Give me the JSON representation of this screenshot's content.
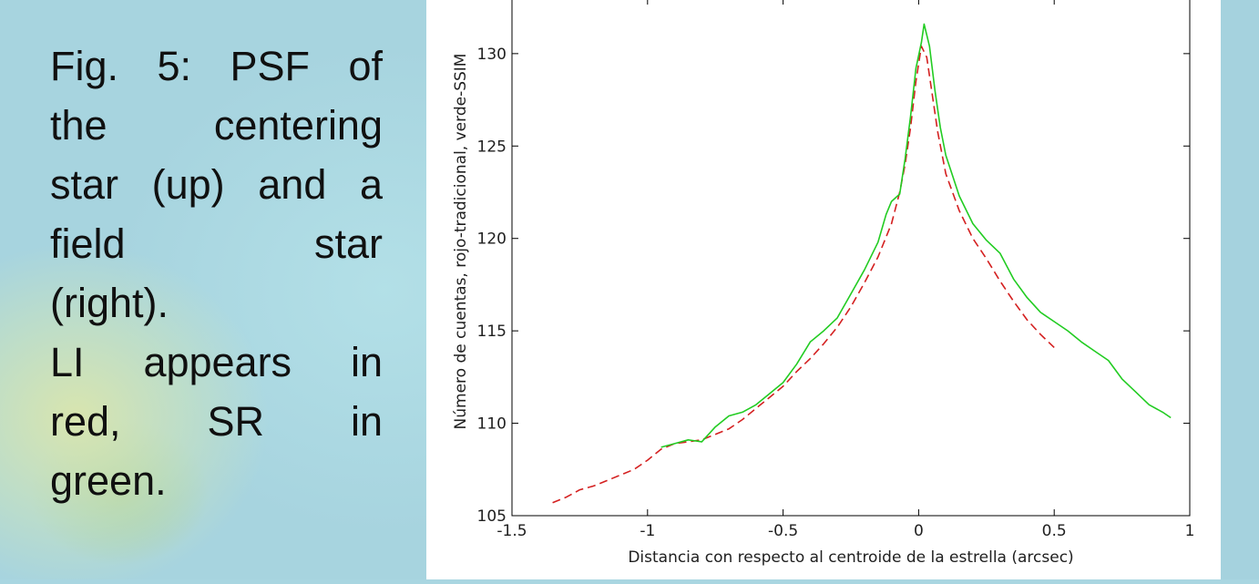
{
  "caption": {
    "lines": [
      "Fig. 5: PSF of",
      "the centering",
      "star (up) and a",
      "field star",
      "(right).",
      "LI appears in",
      "red, SR in",
      "green."
    ]
  },
  "colors": {
    "background": "#a9d6e1",
    "series_red": "#d42020",
    "series_green": "#22cc22"
  },
  "chart_data": {
    "type": "line",
    "title": "",
    "xlabel": "Distancia con respecto al centroide de la estrella (arcsec)",
    "ylabel": "Número de cuentas, rojo-tradicional, verde-SSIM",
    "xlim": [
      -1.5,
      1
    ],
    "ylim": [
      105,
      133
    ],
    "xticks": [
      "-1.5",
      "-1",
      "-0.5",
      "0",
      "0.5",
      "1"
    ],
    "yticks": [
      "105",
      "110",
      "115",
      "120",
      "125",
      "130"
    ],
    "grid": false,
    "series": [
      {
        "color": "#d42020",
        "style": "dashed",
        "points": [
          [
            -1.35,
            105.7
          ],
          [
            -1.3,
            106.0
          ],
          [
            -1.25,
            106.4
          ],
          [
            -1.2,
            106.6
          ],
          [
            -1.15,
            106.9
          ],
          [
            -1.1,
            107.2
          ],
          [
            -1.05,
            107.5
          ],
          [
            -1.0,
            108.0
          ],
          [
            -0.95,
            108.6
          ],
          [
            -0.9,
            108.9
          ],
          [
            -0.85,
            109.0
          ],
          [
            -0.8,
            109.1
          ],
          [
            -0.75,
            109.4
          ],
          [
            -0.7,
            109.7
          ],
          [
            -0.65,
            110.2
          ],
          [
            -0.6,
            110.8
          ],
          [
            -0.55,
            111.4
          ],
          [
            -0.5,
            112.0
          ],
          [
            -0.45,
            112.8
          ],
          [
            -0.4,
            113.5
          ],
          [
            -0.35,
            114.3
          ],
          [
            -0.3,
            115.2
          ],
          [
            -0.25,
            116.3
          ],
          [
            -0.2,
            117.6
          ],
          [
            -0.15,
            119.0
          ],
          [
            -0.1,
            120.8
          ],
          [
            -0.07,
            122.5
          ],
          [
            -0.05,
            124.0
          ],
          [
            -0.03,
            126.0
          ],
          [
            -0.01,
            128.5
          ],
          [
            0.01,
            130.4
          ],
          [
            0.03,
            129.8
          ],
          [
            0.05,
            127.8
          ],
          [
            0.07,
            125.8
          ],
          [
            0.1,
            123.5
          ],
          [
            0.15,
            121.5
          ],
          [
            0.2,
            120.0
          ],
          [
            0.25,
            118.9
          ],
          [
            0.3,
            117.7
          ],
          [
            0.35,
            116.6
          ],
          [
            0.4,
            115.6
          ],
          [
            0.45,
            114.8
          ],
          [
            0.5,
            114.1
          ]
        ]
      },
      {
        "color": "#22cc22",
        "style": "solid",
        "points": [
          [
            -0.95,
            108.7
          ],
          [
            -0.9,
            108.9
          ],
          [
            -0.85,
            109.1
          ],
          [
            -0.8,
            109.0
          ],
          [
            -0.75,
            109.8
          ],
          [
            -0.7,
            110.4
          ],
          [
            -0.65,
            110.6
          ],
          [
            -0.6,
            111.0
          ],
          [
            -0.55,
            111.6
          ],
          [
            -0.5,
            112.2
          ],
          [
            -0.45,
            113.2
          ],
          [
            -0.4,
            114.4
          ],
          [
            -0.35,
            115.0
          ],
          [
            -0.3,
            115.7
          ],
          [
            -0.25,
            117.0
          ],
          [
            -0.2,
            118.3
          ],
          [
            -0.15,
            119.8
          ],
          [
            -0.12,
            121.3
          ],
          [
            -0.1,
            122.0
          ],
          [
            -0.07,
            122.4
          ],
          [
            -0.05,
            124.3
          ],
          [
            -0.03,
            126.6
          ],
          [
            -0.01,
            129.2
          ],
          [
            0.01,
            130.6
          ],
          [
            0.02,
            131.6
          ],
          [
            0.04,
            130.4
          ],
          [
            0.06,
            128.0
          ],
          [
            0.08,
            126.0
          ],
          [
            0.1,
            124.5
          ],
          [
            0.15,
            122.3
          ],
          [
            0.2,
            120.8
          ],
          [
            0.25,
            119.9
          ],
          [
            0.3,
            119.2
          ],
          [
            0.35,
            117.8
          ],
          [
            0.4,
            116.8
          ],
          [
            0.45,
            116.0
          ],
          [
            0.5,
            115.5
          ],
          [
            0.55,
            115.0
          ],
          [
            0.6,
            114.4
          ],
          [
            0.65,
            113.9
          ],
          [
            0.7,
            113.4
          ],
          [
            0.75,
            112.4
          ],
          [
            0.8,
            111.7
          ],
          [
            0.85,
            111.0
          ],
          [
            0.9,
            110.6
          ],
          [
            0.93,
            110.3
          ]
        ]
      }
    ]
  }
}
